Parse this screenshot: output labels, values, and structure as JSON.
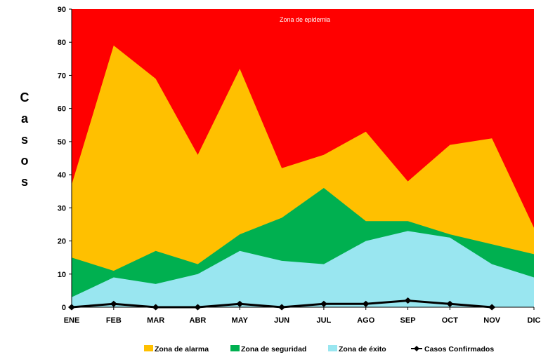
{
  "chart_data": {
    "type": "area",
    "categories": [
      "ENE",
      "FEB",
      "MAR",
      "ABR",
      "MAY",
      "JUN",
      "JUL",
      "AGO",
      "SEP",
      "OCT",
      "NOV",
      "DIC"
    ],
    "ylabel": "Casos",
    "ylabel_letters": [
      "C",
      "a",
      "s",
      "o",
      "s"
    ],
    "ylim": [
      0,
      90
    ],
    "yticks": [
      0,
      10,
      20,
      30,
      40,
      50,
      60,
      70,
      80,
      90
    ],
    "background_zone": {
      "name": "Zona de epidemia",
      "color": "#ff0000"
    },
    "series": [
      {
        "name": "Zona de alarma",
        "color": "#ffc000",
        "kind": "area",
        "values": [
          37,
          79,
          69,
          46,
          72,
          42,
          46,
          53,
          38,
          49,
          51,
          24
        ]
      },
      {
        "name": "Zona de seguridad",
        "color": "#00b050",
        "kind": "area",
        "values": [
          15,
          11,
          17,
          13,
          22,
          27,
          36,
          26,
          26,
          22,
          19,
          16
        ]
      },
      {
        "name": "Zona de éxito",
        "color": "#99e6f0",
        "kind": "area",
        "values": [
          3,
          9,
          7,
          10,
          17,
          14,
          13,
          20,
          23,
          21,
          13,
          9
        ]
      },
      {
        "name": "Casos Confirmados",
        "color": "#000000",
        "kind": "line",
        "values": [
          0,
          1,
          0,
          0,
          1,
          0,
          1,
          1,
          2,
          1,
          0,
          null
        ]
      }
    ],
    "grid": false,
    "legend_position": "bottom"
  }
}
